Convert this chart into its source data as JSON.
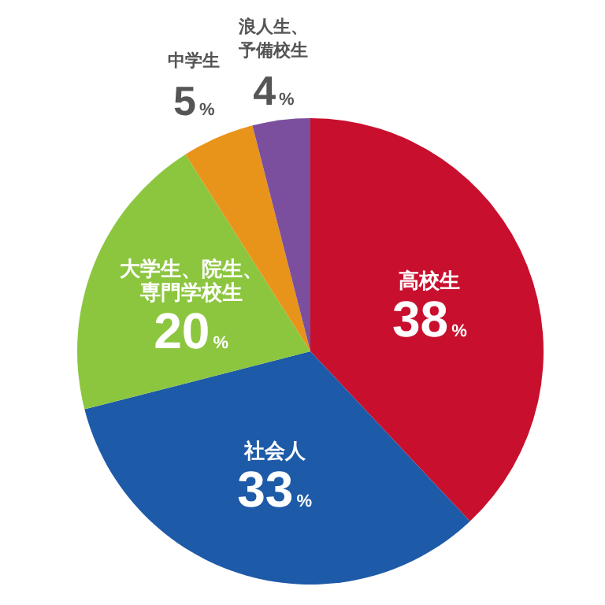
{
  "chart_data": {
    "type": "pie",
    "categories": [
      "高校生",
      "社会人",
      "大学生、院生、専門学校生",
      "中学生",
      "浪人生、予備校生"
    ],
    "values": [
      38,
      33,
      20,
      5,
      4
    ],
    "colors": [
      "#c8102e",
      "#1d5aa8",
      "#8cc63f",
      "#e8941a",
      "#7b4f9e"
    ],
    "value_labels": [
      "38%",
      "33%",
      "20%",
      "5%",
      "4%"
    ]
  }
}
